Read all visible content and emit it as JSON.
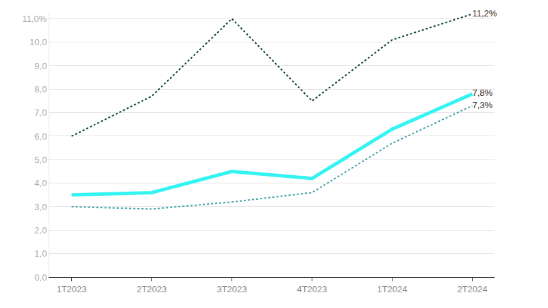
{
  "chart_data": {
    "type": "line",
    "categories": [
      "1T2023",
      "2T2023",
      "3T2023",
      "4T2023",
      "1T2024",
      "2T2024"
    ],
    "series": [
      {
        "color": "#0b3b3b",
        "line_style": "dotted",
        "values": [
          6.0,
          7.7,
          11.0,
          7.5,
          10.1,
          11.2
        ],
        "value_labels": [
          null,
          null,
          null,
          null,
          null,
          "11,2%"
        ]
      },
      {
        "color": "#33f3f3",
        "line_style": "solid",
        "values": [
          3.5,
          3.6,
          4.5,
          4.2,
          6.3,
          7.8
        ],
        "value_labels": [
          null,
          null,
          null,
          null,
          null,
          "7,8%"
        ]
      },
      {
        "color": "#3a9ea6",
        "line_style": "dotted",
        "values": [
          3.0,
          2.9,
          3.2,
          3.6,
          5.7,
          7.3
        ],
        "value_labels": [
          null,
          null,
          null,
          null,
          null,
          "7,3%"
        ]
      }
    ],
    "ylim": [
      0,
      11.3
    ],
    "yticks": [
      {
        "value": 0,
        "label": "0,0"
      },
      {
        "value": 1,
        "label": "1,0"
      },
      {
        "value": 2,
        "label": "2,0"
      },
      {
        "value": 3,
        "label": "3,0"
      },
      {
        "value": 4,
        "label": "4,0"
      },
      {
        "value": 5,
        "label": "5,0"
      },
      {
        "value": 6,
        "label": "6,0"
      },
      {
        "value": 7,
        "label": "7,0"
      },
      {
        "value": 8,
        "label": "8,0"
      },
      {
        "value": 9,
        "label": "9,0"
      },
      {
        "value": 10,
        "label": "10,0"
      },
      {
        "value": 11,
        "label": "11,0%"
      }
    ],
    "grid": true,
    "data_labels": true
  }
}
